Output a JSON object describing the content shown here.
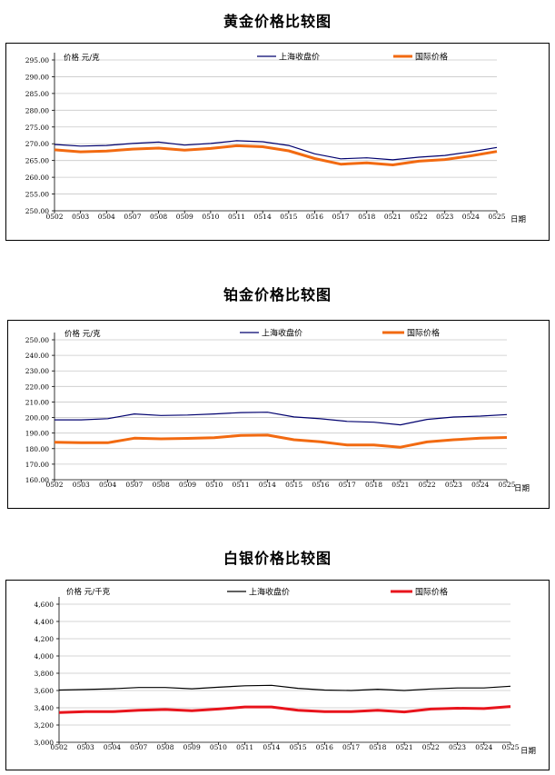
{
  "chart_data": [
    {
      "type": "line",
      "title": "黄金价格比较图",
      "ylabel": "价格 元/克",
      "xlabel": "日期",
      "categories": [
        "0502",
        "0503",
        "0504",
        "0507",
        "0508",
        "0509",
        "0510",
        "0511",
        "0514",
        "0515",
        "0516",
        "0517",
        "0518",
        "0521",
        "0522",
        "0523",
        "0524",
        "0525"
      ],
      "ylim": [
        250,
        295
      ],
      "ytick_step": 5,
      "ytick_labels": [
        "250.00",
        "255.00",
        "260.00",
        "265.00",
        "270.00",
        "275.00",
        "280.00",
        "285.00",
        "290.00",
        "295.00"
      ],
      "legend_position": "top",
      "series": [
        {
          "name": "上海收盘价",
          "color": "#00006e",
          "stroke_width": 1.2,
          "values": [
            269.8,
            269.3,
            269.5,
            270.1,
            270.5,
            269.6,
            270.1,
            270.9,
            270.6,
            269.5,
            267.0,
            265.5,
            265.8,
            265.2,
            266.0,
            266.5,
            267.6,
            268.9
          ]
        },
        {
          "name": "国际价格",
          "color": "#f26a11",
          "stroke_width": 3,
          "values": [
            268.2,
            267.6,
            267.8,
            268.4,
            268.7,
            268.1,
            268.6,
            269.4,
            269.1,
            267.9,
            265.6,
            263.9,
            264.3,
            263.7,
            264.8,
            265.3,
            266.4,
            267.7
          ]
        }
      ]
    },
    {
      "type": "line",
      "title": "铂金价格比较图",
      "ylabel": "价格 元/克",
      "xlabel": "日期",
      "categories": [
        "0502",
        "0503",
        "0504",
        "0507",
        "0508",
        "0509",
        "0510",
        "0511",
        "0514",
        "0515",
        "0516",
        "0517",
        "0518",
        "0521",
        "0522",
        "0523",
        "0524",
        "0525"
      ],
      "ylim": [
        160,
        250
      ],
      "ytick_step": 10,
      "ytick_labels": [
        "160.00",
        "170.00",
        "180.00",
        "190.00",
        "200.00",
        "210.00",
        "220.00",
        "230.00",
        "240.00",
        "250.00"
      ],
      "legend_position": "top",
      "series": [
        {
          "name": "上海收盘价",
          "color": "#00006e",
          "stroke_width": 1.2,
          "values": [
            198.5,
            198.5,
            199.3,
            202.3,
            201.3,
            201.6,
            202.3,
            203.2,
            203.4,
            200.4,
            199.2,
            197.5,
            197.0,
            195.3,
            198.8,
            200.3,
            200.9,
            201.9
          ]
        },
        {
          "name": "国际价格",
          "color": "#f26a11",
          "stroke_width": 3,
          "values": [
            184.1,
            183.8,
            183.8,
            186.7,
            186.3,
            186.6,
            187.0,
            188.5,
            188.7,
            185.7,
            184.4,
            182.3,
            182.4,
            180.9,
            184.3,
            185.7,
            186.7,
            187.2
          ]
        }
      ]
    },
    {
      "type": "line",
      "title": "白银价格比较图",
      "ylabel": "价格 元/千克",
      "xlabel": "日期",
      "categories": [
        "0502",
        "0503",
        "0504",
        "0507",
        "0508",
        "0509",
        "0510",
        "0511",
        "0514",
        "0515",
        "0516",
        "0517",
        "0518",
        "0521",
        "0522",
        "0523",
        "0524",
        "0525"
      ],
      "ylim": [
        3000,
        4600
      ],
      "ytick_step": 200,
      "ytick_labels": [
        "3,000",
        "3,200",
        "3,400",
        "3,600",
        "3,800",
        "4,000",
        "4,200",
        "4,400",
        "4,600"
      ],
      "legend_position": "top",
      "series": [
        {
          "name": "上海收盘价",
          "color": "#000000",
          "stroke_width": 1.2,
          "values": [
            3605,
            3612,
            3620,
            3635,
            3635,
            3620,
            3638,
            3655,
            3660,
            3625,
            3605,
            3600,
            3615,
            3600,
            3618,
            3630,
            3630,
            3650
          ]
        },
        {
          "name": "国际价格",
          "color": "#e8141c",
          "stroke_width": 3,
          "values": [
            3345,
            3355,
            3355,
            3370,
            3380,
            3365,
            3385,
            3410,
            3410,
            3370,
            3355,
            3355,
            3370,
            3352,
            3385,
            3395,
            3390,
            3415
          ]
        }
      ]
    }
  ]
}
